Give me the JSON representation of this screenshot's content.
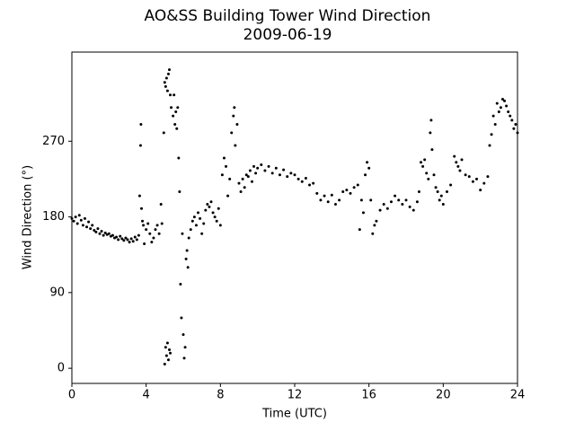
{
  "chart_data": {
    "type": "scatter",
    "title": "AO&SS Building Tower Wind Direction",
    "subtitle": "2009-06-19",
    "x_label": "Time (UTC)",
    "y_label": "Wind Direction (°)",
    "color": "#000000",
    "xlim": [
      0,
      24
    ],
    "xticks": [
      0,
      4,
      8,
      12,
      16,
      20,
      24
    ],
    "ylim": [
      -18,
      376
    ],
    "yticks": [
      0,
      90,
      180,
      270
    ],
    "grid": false,
    "x": [
      0,
      0.1,
      0.2,
      0.3,
      0.4,
      0.5,
      0.6,
      0.7,
      0.8,
      0.9,
      1.0,
      1.1,
      1.2,
      1.3,
      1.4,
      1.5,
      1.6,
      1.7,
      1.8,
      1.9,
      2.0,
      2.1,
      2.2,
      2.3,
      2.4,
      2.5,
      2.6,
      2.7,
      2.8,
      2.9,
      3.0,
      3.1,
      3.2,
      3.3,
      3.4,
      3.5,
      3.6,
      3.65,
      3.7,
      3.72,
      3.75,
      3.8,
      3.85,
      3.9,
      4.0,
      4.1,
      4.2,
      4.3,
      4.4,
      4.5,
      4.6,
      4.7,
      4.8,
      4.85,
      4.95,
      5.0,
      5.05,
      5.1,
      5.15,
      5.2,
      5.25,
      5.3,
      5.0,
      5.05,
      5.1,
      5.15,
      5.2,
      5.25,
      5.3,
      5.35,
      5.45,
      5.5,
      5.55,
      5.6,
      5.65,
      5.7,
      5.75,
      5.8,
      5.85,
      5.9,
      5.95,
      6.0,
      6.05,
      6.1,
      6.15,
      6.2,
      6.25,
      6.3,
      6.4,
      6.5,
      6.6,
      6.7,
      6.8,
      6.9,
      7.0,
      7.1,
      7.2,
      7.3,
      7.4,
      7.5,
      7.6,
      7.7,
      7.8,
      7.9,
      8.0,
      8.1,
      8.2,
      8.3,
      8.4,
      8.5,
      8.6,
      8.7,
      8.75,
      8.8,
      8.9,
      9.0,
      9.1,
      9.2,
      9.3,
      9.4,
      9.5,
      9.6,
      9.7,
      9.8,
      9.9,
      10.0,
      10.2,
      10.4,
      10.6,
      10.8,
      11.0,
      11.2,
      11.4,
      11.6,
      11.8,
      12.0,
      12.2,
      12.4,
      12.6,
      12.8,
      13.0,
      13.2,
      13.4,
      13.6,
      13.8,
      14.0,
      14.2,
      14.4,
      14.6,
      14.8,
      15.0,
      15.2,
      15.4,
      15.5,
      15.6,
      15.7,
      15.8,
      15.9,
      16.0,
      16.1,
      16.2,
      16.3,
      16.4,
      16.6,
      16.8,
      17.0,
      17.2,
      17.4,
      17.6,
      17.8,
      18.0,
      18.2,
      18.4,
      18.6,
      18.7,
      18.8,
      18.9,
      19.0,
      19.1,
      19.2,
      19.3,
      19.35,
      19.4,
      19.5,
      19.6,
      19.7,
      19.8,
      19.9,
      20.0,
      20.2,
      20.4,
      20.6,
      20.7,
      20.8,
      20.9,
      21.0,
      21.2,
      21.4,
      21.6,
      21.8,
      22.0,
      22.2,
      22.4,
      22.5,
      22.6,
      22.7,
      22.8,
      22.9,
      23.0,
      23.1,
      23.2,
      23.3,
      23.4,
      23.5,
      23.6,
      23.7,
      23.8,
      23.9,
      24.0
    ],
    "values": [
      178,
      175,
      180,
      172,
      182,
      176,
      170,
      178,
      168,
      174,
      166,
      170,
      164,
      162,
      166,
      160,
      163,
      158,
      161,
      159,
      160,
      157,
      158,
      155,
      156,
      153,
      157,
      154,
      152,
      155,
      153,
      150,
      154,
      151,
      156,
      153,
      158,
      205,
      265,
      290,
      190,
      175,
      170,
      148,
      165,
      172,
      160,
      150,
      155,
      165,
      170,
      160,
      195,
      172,
      280,
      340,
      335,
      345,
      330,
      350,
      355,
      325,
      5,
      25,
      15,
      30,
      10,
      22,
      18,
      310,
      300,
      325,
      290,
      305,
      285,
      310,
      250,
      210,
      100,
      60,
      160,
      40,
      12,
      25,
      130,
      140,
      120,
      155,
      165,
      175,
      180,
      170,
      185,
      178,
      160,
      172,
      188,
      195,
      192,
      198,
      185,
      180,
      175,
      190,
      170,
      230,
      250,
      240,
      205,
      225,
      280,
      300,
      310,
      265,
      290,
      220,
      210,
      225,
      215,
      230,
      228,
      235,
      222,
      240,
      232,
      238,
      242,
      235,
      240,
      232,
      238,
      230,
      236,
      228,
      232,
      230,
      225,
      222,
      226,
      218,
      220,
      208,
      200,
      205,
      198,
      206,
      195,
      200,
      210,
      212,
      208,
      215,
      218,
      165,
      200,
      185,
      230,
      245,
      238,
      200,
      160,
      170,
      175,
      188,
      195,
      190,
      198,
      205,
      200,
      195,
      200,
      192,
      188,
      198,
      210,
      245,
      240,
      248,
      232,
      225,
      280,
      295,
      260,
      230,
      215,
      210,
      200,
      205,
      195,
      210,
      218,
      252,
      245,
      240,
      235,
      248,
      230,
      228,
      222,
      225,
      212,
      220,
      228,
      265,
      278,
      300,
      290,
      315,
      305,
      310,
      320,
      318,
      312,
      305,
      300,
      295,
      285,
      290,
      280
    ]
  }
}
